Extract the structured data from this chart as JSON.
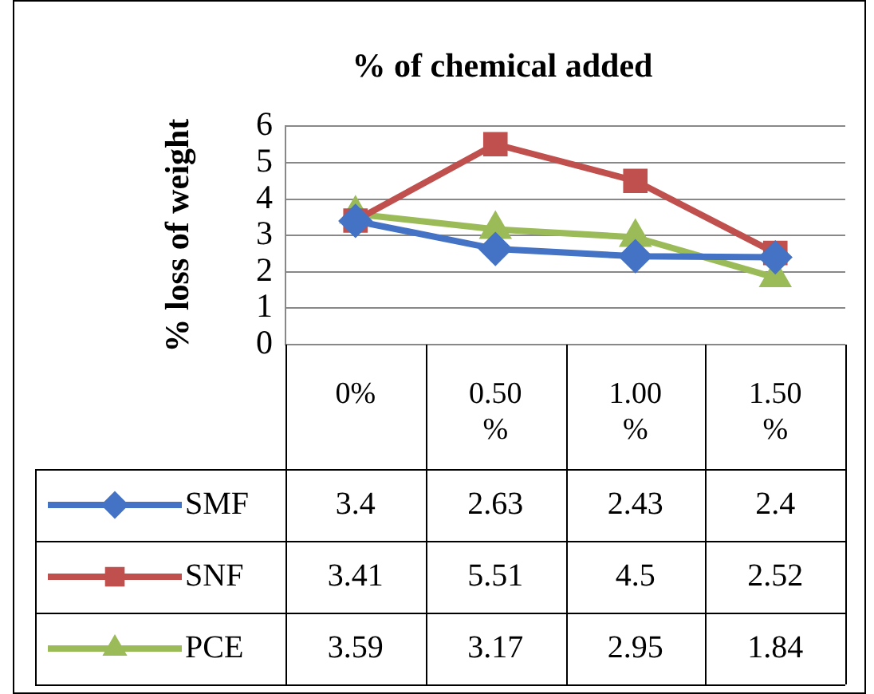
{
  "chart_data": {
    "type": "line",
    "title": "% of chemical added",
    "ylabel": "% loss of weight",
    "categories": [
      "0%",
      "0.50 %",
      "1.00 %",
      "1.50 %"
    ],
    "series": [
      {
        "name": "SMF",
        "color": "#4472c4",
        "marker": "diamond",
        "values": [
          3.4,
          2.63,
          2.43,
          2.4
        ]
      },
      {
        "name": "SNF",
        "color": "#c0504d",
        "marker": "square",
        "values": [
          3.41,
          5.51,
          4.5,
          2.52
        ]
      },
      {
        "name": "PCE",
        "color": "#9bbb59",
        "marker": "triangle",
        "values": [
          3.59,
          3.17,
          2.95,
          1.84
        ]
      }
    ],
    "ylim": [
      0,
      6
    ],
    "yticks": [
      0,
      1,
      2,
      3,
      4,
      5,
      6
    ],
    "grid": "y",
    "legend": "bottom",
    "data_labels": true
  }
}
